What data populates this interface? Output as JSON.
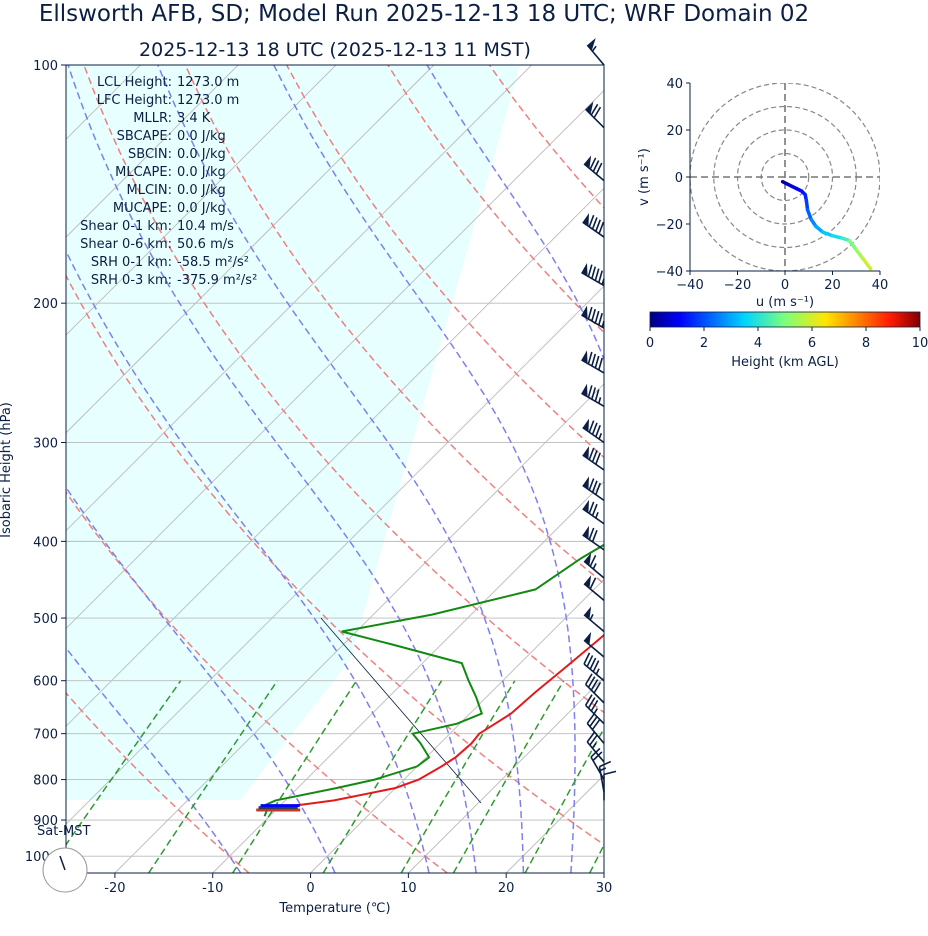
{
  "header": {
    "title": "Ellsworth AFB, SD; Model Run 2025-12-13 18 UTC; WRF Domain 02",
    "subtitle": "2025-12-13 18 UTC  (2025-12-13 11 MST)"
  },
  "chart_data": [
    {
      "type": "line",
      "name": "skew-t",
      "xlabel": "Temperature (℃)",
      "ylabel": "Isobaric Height (hPa)",
      "xlim": [
        -25,
        30
      ],
      "ylim": [
        1050,
        100
      ],
      "x_ticks": [
        -20,
        -10,
        0,
        10,
        20,
        30
      ],
      "y_ticks": [
        100,
        200,
        300,
        400,
        500,
        600,
        700,
        800,
        900,
        1000
      ],
      "grid": true,
      "corner_label": "Sat-MST",
      "stats": [
        "LCL Height: 1273.0 m",
        "LFC Height: 1273.0 m",
        "MLLR: 3.4 K",
        "SBCAPE: 0.0 J/kg",
        "SBCIN: 0.0 J/kg",
        "MLCAPE: 0.0 J/kg",
        "MLCIN: 0.0 J/kg",
        "MUCAPE: 0.0 J/kg",
        "Shear 0-1 km: 10.4 m/s",
        "Shear 0-6 km: 50.6 m/s",
        "SRH 0-1 km: -58.5 m²/s²",
        "SRH 0-3 km: -375.9 m²/s²"
      ],
      "temperature": [
        [
          875,
          -7.5
        ],
        [
          865,
          -9
        ],
        [
          850,
          -5
        ],
        [
          820,
          0
        ],
        [
          800,
          1.5
        ],
        [
          770,
          2.5
        ],
        [
          750,
          3
        ],
        [
          720,
          3.2
        ],
        [
          700,
          3
        ],
        [
          660,
          4.2
        ],
        [
          620,
          4.5
        ],
        [
          580,
          5
        ],
        [
          540,
          5.5
        ],
        [
          500,
          6
        ],
        [
          450,
          5.5
        ],
        [
          400,
          5
        ],
        [
          360,
          3.5
        ],
        [
          320,
          1
        ],
        [
          290,
          -0.8
        ],
        [
          260,
          -2.5
        ],
        [
          230,
          -3.5
        ],
        [
          210,
          -3.5
        ],
        [
          190,
          -2
        ],
        [
          170,
          0
        ],
        [
          150,
          2
        ],
        [
          130,
          5
        ],
        [
          115,
          8
        ],
        [
          100,
          11
        ]
      ],
      "dewpoint": [
        [
          890,
          -10.5
        ],
        [
          870,
          -11
        ],
        [
          860,
          -11.5
        ],
        [
          850,
          -11
        ],
        [
          820,
          -6
        ],
        [
          800,
          -3
        ],
        [
          770,
          0
        ],
        [
          750,
          0.3
        ],
        [
          720,
          -2
        ],
        [
          700,
          -3.8
        ],
        [
          680,
          -0.3
        ],
        [
          660,
          1.2
        ],
        [
          630,
          -1
        ],
        [
          600,
          -3.5
        ],
        [
          570,
          -6
        ],
        [
          540,
          -15
        ],
        [
          520,
          -21.5
        ],
        [
          495,
          -14
        ],
        [
          460,
          -6
        ],
        [
          420,
          -4.5
        ],
        [
          395,
          -3
        ],
        [
          365,
          -4
        ],
        [
          330,
          -6
        ],
        [
          300,
          -8
        ],
        [
          270,
          -10
        ],
        [
          250,
          -11
        ],
        [
          220,
          -13
        ],
        [
          190,
          -16
        ],
        [
          170,
          -17.5
        ],
        [
          150,
          -17.5
        ],
        [
          130,
          -16
        ],
        [
          115,
          -14
        ],
        [
          100,
          -11
        ]
      ],
      "parcel_markers": [
        {
          "color": "#c0392b",
          "p": 874,
          "t1": -12,
          "t2": -7.5
        },
        {
          "color": "#2c3e50",
          "p": 868,
          "t1": -12,
          "t2": -8
        },
        {
          "color": "#0000ff",
          "p": 863,
          "t1": -12,
          "t2": -8
        }
      ],
      "wind_barbs": [
        {
          "p": 100,
          "speed": 55,
          "dir": 320
        },
        {
          "p": 120,
          "speed": 70,
          "dir": 315
        },
        {
          "p": 140,
          "speed": 80,
          "dir": 310
        },
        {
          "p": 165,
          "speed": 90,
          "dir": 305
        },
        {
          "p": 190,
          "speed": 95,
          "dir": 300
        },
        {
          "p": 215,
          "speed": 95,
          "dir": 300
        },
        {
          "p": 245,
          "speed": 90,
          "dir": 300
        },
        {
          "p": 270,
          "speed": 85,
          "dir": 300
        },
        {
          "p": 300,
          "speed": 85,
          "dir": 305
        },
        {
          "p": 325,
          "speed": 80,
          "dir": 305
        },
        {
          "p": 355,
          "speed": 80,
          "dir": 305
        },
        {
          "p": 380,
          "speed": 75,
          "dir": 305
        },
        {
          "p": 410,
          "speed": 70,
          "dir": 305
        },
        {
          "p": 445,
          "speed": 65,
          "dir": 310
        },
        {
          "p": 475,
          "speed": 60,
          "dir": 310
        },
        {
          "p": 520,
          "speed": 55,
          "dir": 310
        },
        {
          "p": 560,
          "speed": 50,
          "dir": 310
        },
        {
          "p": 600,
          "speed": 45,
          "dir": 310
        },
        {
          "p": 640,
          "speed": 40,
          "dir": 315
        },
        {
          "p": 680,
          "speed": 35,
          "dir": 315
        },
        {
          "p": 720,
          "speed": 30,
          "dir": 320
        },
        {
          "p": 760,
          "speed": 25,
          "dir": 320
        },
        {
          "p": 800,
          "speed": 20,
          "dir": 330
        },
        {
          "p": 830,
          "speed": 15,
          "dir": 350
        },
        {
          "p": 850,
          "speed": 10,
          "dir": 0
        }
      ],
      "dry_adiabats_C": [
        -30,
        -10,
        10,
        30,
        50,
        70,
        90,
        110,
        130
      ],
      "moist_adiabats_C": [
        -10,
        0,
        10,
        15,
        20,
        25,
        30
      ],
      "mixing_ratio_lines": [
        0.4,
        1,
        2,
        4,
        7,
        10,
        16,
        24
      ]
    },
    {
      "type": "line",
      "name": "hodograph",
      "xlabel": "u (m s⁻¹)",
      "ylabel": "v (m s⁻¹)",
      "xlim": [
        -40,
        40
      ],
      "ylim": [
        -40,
        40
      ],
      "x_ticks": [
        -40,
        -20,
        0,
        20,
        40
      ],
      "y_ticks": [
        40,
        20,
        0,
        -20,
        -40
      ],
      "rings": [
        10,
        20,
        30,
        40
      ],
      "points": [
        [
          -1,
          -2,
          0.0
        ],
        [
          1,
          -3,
          0.3
        ],
        [
          3,
          -4,
          0.6
        ],
        [
          5,
          -5,
          0.9
        ],
        [
          7,
          -6,
          1.1
        ],
        [
          8.5,
          -7.5,
          1.3
        ],
        [
          9,
          -10,
          1.5
        ],
        [
          9.5,
          -14,
          1.8
        ],
        [
          11,
          -18,
          2.2
        ],
        [
          13,
          -21,
          2.6
        ],
        [
          16,
          -23.5,
          3.0
        ],
        [
          20,
          -25,
          3.4
        ],
        [
          24,
          -26,
          3.8
        ],
        [
          27,
          -27,
          4.3
        ],
        [
          30,
          -31,
          4.9
        ],
        [
          33,
          -35,
          5.4
        ],
        [
          36,
          -39,
          5.9
        ]
      ]
    },
    {
      "type": "heatmap",
      "name": "height-colorbar",
      "xlabel": "Height (km AGL)",
      "xlim": [
        0,
        10
      ],
      "x_ticks": [
        0,
        2,
        4,
        6,
        8,
        10
      ]
    }
  ]
}
